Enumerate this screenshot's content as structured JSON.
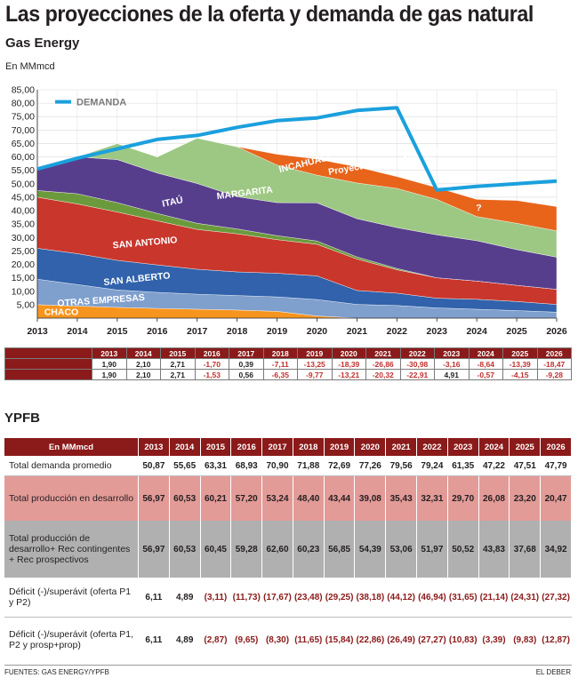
{
  "title": "Las proyecciones de la oferta y demanda de gas natural",
  "section1_title": "Gas Energy",
  "units": "En MMmcd",
  "chart_data": {
    "type": "area",
    "title": "Las proyecciones de la oferta y demanda de gas natural",
    "ylabel": "En MMmcd",
    "x": [
      2013,
      2014,
      2015,
      2016,
      2017,
      2018,
      2019,
      2020,
      2021,
      2022,
      2023,
      2024,
      2025,
      2026
    ],
    "x_labels": [
      "2013",
      "2014",
      "2015",
      "2016",
      "2017",
      "2018",
      "2019",
      "2020",
      "2021",
      "2022",
      "2023",
      "2024",
      "2025",
      "2026"
    ],
    "y_ticks": [
      "5,00",
      "10,00",
      "15,00",
      "20,00",
      "25,00",
      "30,00",
      "35,00",
      "40,00",
      "45,00",
      "50,00",
      "55,00",
      "60,00",
      "65,00",
      "70,00",
      "75,00",
      "80,00",
      "85,00"
    ],
    "ylim": [
      0,
      85
    ],
    "stacked_series": [
      {
        "name": "CHACO",
        "label": "CHACO",
        "color": "#f7941d",
        "values": [
          5.0,
          4.5,
          4.0,
          3.6,
          3.3,
          3.0,
          2.5,
          0.8,
          0,
          0,
          0,
          0,
          0,
          0
        ]
      },
      {
        "name": "OTRAS EMPRESAS",
        "label": "OTRAS EMPRESAS",
        "color": "#7f9fcd",
        "values": [
          9.5,
          8.0,
          6.5,
          6.0,
          5.6,
          5.4,
          5.4,
          6.1,
          5.1,
          4.7,
          3.8,
          3.3,
          2.8,
          2.2
        ]
      },
      {
        "name": "SAN ALBERTO",
        "label": "SAN ALBERTO",
        "color": "#3162ab",
        "values": [
          11.5,
          11.5,
          11.0,
          10.2,
          9.3,
          8.8,
          8.8,
          8.8,
          5.2,
          4.6,
          3.6,
          3.7,
          3.4,
          2.9
        ]
      },
      {
        "name": "SAN ANTONIO",
        "label": "SAN ANTONIO",
        "color": "#c9362c",
        "values": [
          19.0,
          18.5,
          18.0,
          16.4,
          14.8,
          14.2,
          12.5,
          11.8,
          11.7,
          8.7,
          7.6,
          6.8,
          6.0,
          5.6
        ]
      },
      {
        "name": "ITAÚ",
        "label": "ITAÚ",
        "color": "#6b9a3c",
        "values": [
          2.5,
          3.8,
          3.5,
          2.8,
          2.3,
          1.8,
          1.5,
          1.2,
          0.8,
          0.5,
          0,
          0,
          0,
          0
        ]
      },
      {
        "name": "MARGARITA",
        "label": "MARGARITA",
        "color": "#573e8c",
        "values": [
          8.5,
          13.7,
          16.0,
          15.0,
          14.8,
          12.0,
          12.3,
          14.2,
          14.2,
          15.2,
          16.0,
          15.0,
          13.3,
          12.0
        ]
      },
      {
        "name": "INCAHUASI",
        "label": "INCAHUASI",
        "color": "#9dc883",
        "values": [
          0,
          0,
          6.0,
          6.0,
          16.9,
          18.6,
          14.0,
          10.3,
          13.3,
          14.6,
          13.2,
          9.0,
          9.8,
          9.8
        ]
      },
      {
        "name": "Proyecto explotación YPFB",
        "label": "Proyecto explotación YPFB",
        "color": "#e8641b",
        "values": [
          0,
          0,
          0,
          0,
          0,
          0,
          4.0,
          6.0,
          6.0,
          4.4,
          4.4,
          6.4,
          8.5,
          9.0
        ]
      }
    ],
    "demand_series": {
      "name": "DEMANDA",
      "color": "#1ba0dd",
      "values": [
        55.5,
        59.5,
        63.0,
        66.5,
        68.0,
        71.0,
        73.5,
        74.5,
        77.3,
        78.3,
        47.7,
        49.0,
        50.0,
        51.0
      ]
    },
    "annotations": [
      "?"
    ],
    "legend": {
      "label": "DEMANDA",
      "position": "top-left"
    }
  },
  "table1": {
    "years": [
      "2013",
      "2014",
      "2015",
      "2016",
      "2017",
      "2018",
      "2019",
      "2020",
      "2021",
      "2022",
      "2023",
      "2024",
      "2025",
      "2026"
    ],
    "row1": [
      "1,90",
      "2,10",
      "2,71",
      "-1,70",
      "0,39",
      "-7,11",
      "-13,25",
      "-18,39",
      "-26,86",
      "-30,98",
      "-3,16",
      "-8,64",
      "-13,39",
      "-18,47"
    ],
    "row2": [
      "1,90",
      "2,10",
      "2,71",
      "-1,53",
      "0,56",
      "-6,35",
      "-9,77",
      "-13,21",
      "-20,32",
      "-22,91",
      "4,91",
      "-0,57",
      "-4,15",
      "-9,28"
    ]
  },
  "section2_title": "YPFB",
  "table2": {
    "header_label": "En MMmcd",
    "years": [
      "2013",
      "2014",
      "2015",
      "2016",
      "2017",
      "2018",
      "2019",
      "2020",
      "2021",
      "2022",
      "2023",
      "2024",
      "2025",
      "2026"
    ],
    "rows": [
      {
        "label": "Total demanda promedio",
        "values": [
          "50,87",
          "55,65",
          "63,31",
          "68,93",
          "70,90",
          "71,88",
          "72,69",
          "77,26",
          "79,56",
          "79,24",
          "61,35",
          "47,22",
          "47,51",
          "47,79"
        ]
      },
      {
        "label": "Total producción en desarrollo",
        "values": [
          "56,97",
          "60,53",
          "60,21",
          "57,20",
          "53,24",
          "48,40",
          "43,44",
          "39,08",
          "35,43",
          "32,31",
          "29,70",
          "26,08",
          "23,20",
          "20,47"
        ]
      },
      {
        "label": "Total producción de desarrollo+ Rec contingentes + Rec prospectivos",
        "values": [
          "56,97",
          "60,53",
          "60,45",
          "59,28",
          "62,60",
          "60,23",
          "56,85",
          "54,39",
          "53,06",
          "51,97",
          "50,52",
          "43,83",
          "37,68",
          "34,92"
        ]
      },
      {
        "label": "Déficit (-)/superávit (oferta P1 y P2)",
        "values": [
          "6,11",
          "4,89",
          "(3,11)",
          "(11,73)",
          "(17,67)",
          "(23,48)",
          "(29,25)",
          "(38,18)",
          "(44,12)",
          "(46,94)",
          "(31,65)",
          "(21,14)",
          "(24,31)",
          "(27,32)"
        ]
      },
      {
        "label": "Déficit (-)/superávit (oferta P1, P2 y prosp+prop)",
        "values": [
          "6,11",
          "4,89",
          "(2,87)",
          "(9,65)",
          "(8,30)",
          "(11,65)",
          "(15,84)",
          "(22,86)",
          "(26,49)",
          "(27,27)",
          "(10,83)",
          "(3,39)",
          "(9,83)",
          "(12,87)"
        ]
      }
    ]
  },
  "footer": {
    "source": "FUENTES: GAS ENERGY/YPFB",
    "credit": "EL DEBER"
  }
}
